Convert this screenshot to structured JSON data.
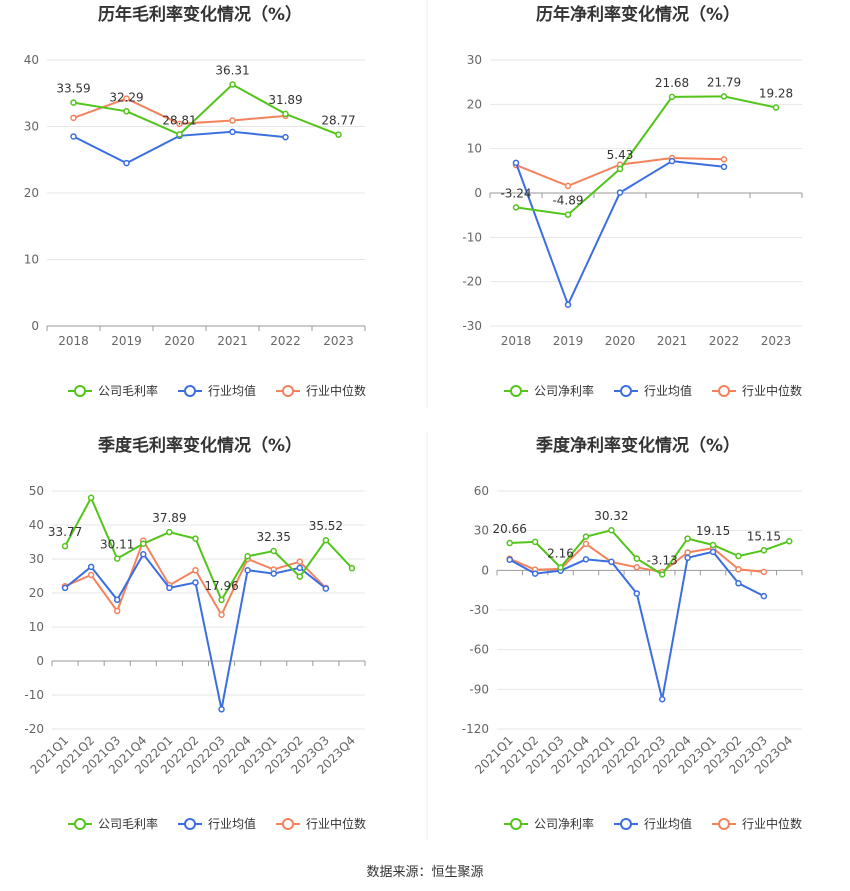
{
  "colors": {
    "company": "#52c41a",
    "industry_avg": "#3b6ee0",
    "industry_median": "#f4835d",
    "grid": "#e6e6e6",
    "axis_text": "#666666",
    "title": "#333333"
  },
  "source": "数据来源：恒生聚源",
  "chart_data": [
    {
      "type": "line",
      "title": "历年毛利率变化情况（%）",
      "categories": [
        "2018",
        "2019",
        "2020",
        "2021",
        "2022",
        "2023"
      ],
      "ylim": [
        0,
        40
      ],
      "yticks": [
        0,
        10,
        20,
        30,
        40
      ],
      "grid": true,
      "legend_position": "bottom",
      "series": [
        {
          "name": "公司毛利率",
          "color": "#52c41a",
          "values": [
            33.59,
            32.29,
            28.81,
            36.31,
            31.89,
            28.77
          ],
          "labeled": true
        },
        {
          "name": "行业均值",
          "color": "#3b6ee0",
          "values": [
            28.5,
            24.5,
            28.6,
            29.2,
            28.4,
            null
          ],
          "labeled": false
        },
        {
          "name": "行业中位数",
          "color": "#f4835d",
          "values": [
            31.3,
            34.2,
            30.4,
            30.9,
            31.6,
            null
          ],
          "labeled": false
        }
      ]
    },
    {
      "type": "line",
      "title": "历年净利率变化情况（%）",
      "categories": [
        "2018",
        "2019",
        "2020",
        "2021",
        "2022",
        "2023"
      ],
      "ylim": [
        -30,
        30
      ],
      "yticks": [
        -30,
        -20,
        -10,
        0,
        10,
        20,
        30
      ],
      "grid": true,
      "legend_position": "bottom",
      "series": [
        {
          "name": "公司净利率",
          "color": "#52c41a",
          "values": [
            -3.24,
            -4.89,
            5.43,
            21.68,
            21.79,
            19.28
          ],
          "labeled": true
        },
        {
          "name": "行业均值",
          "color": "#3b6ee0",
          "values": [
            6.8,
            -25.2,
            0.1,
            7.2,
            5.9,
            null
          ],
          "labeled": false
        },
        {
          "name": "行业中位数",
          "color": "#f4835d",
          "values": [
            6.3,
            1.6,
            6.4,
            7.9,
            7.6,
            null
          ],
          "labeled": false
        }
      ]
    },
    {
      "type": "line",
      "title": "季度毛利率变化情况（%）",
      "categories": [
        "2021Q1",
        "2021Q2",
        "2021Q3",
        "2021Q4",
        "2022Q1",
        "2022Q2",
        "2022Q3",
        "2022Q4",
        "2023Q1",
        "2023Q2",
        "2023Q3",
        "2023Q4"
      ],
      "ylim": [
        -20,
        50
      ],
      "yticks": [
        -20,
        -10,
        0,
        10,
        20,
        30,
        40,
        50
      ],
      "grid": true,
      "legend_position": "bottom",
      "series": [
        {
          "name": "公司毛利率",
          "color": "#52c41a",
          "values": [
            33.77,
            48.0,
            30.11,
            34.5,
            37.89,
            36.0,
            17.96,
            30.8,
            32.35,
            24.8,
            35.52,
            27.3
          ],
          "labeled_points": [
            0,
            2,
            4,
            6,
            8,
            10
          ]
        },
        {
          "name": "行业均值",
          "color": "#3b6ee0",
          "values": [
            21.5,
            27.7,
            18.0,
            31.4,
            21.5,
            23.1,
            -14.2,
            26.7,
            25.7,
            27.4,
            21.3,
            null
          ],
          "labeled_points": []
        },
        {
          "name": "行业中位数",
          "color": "#f4835d",
          "values": [
            22.0,
            25.3,
            14.7,
            35.4,
            22.3,
            26.7,
            13.6,
            30.0,
            26.9,
            29.2,
            21.5,
            null
          ],
          "labeled_points": []
        }
      ]
    },
    {
      "type": "line",
      "title": "季度净利率变化情况（%）",
      "categories": [
        "2021Q1",
        "2021Q2",
        "2021Q3",
        "2021Q4",
        "2022Q1",
        "2022Q2",
        "2022Q3",
        "2022Q4",
        "2023Q1",
        "2023Q2",
        "2023Q3",
        "2023Q4"
      ],
      "ylim": [
        -120,
        60
      ],
      "yticks": [
        -120,
        -90,
        -60,
        -30,
        0,
        30,
        60
      ],
      "grid": true,
      "legend_position": "bottom",
      "series": [
        {
          "name": "公司净利率",
          "color": "#52c41a",
          "values": [
            20.66,
            21.5,
            2.16,
            25.5,
            30.32,
            8.9,
            -3.13,
            24.0,
            19.15,
            10.8,
            15.15,
            22.0
          ],
          "labeled_points": [
            0,
            2,
            4,
            6,
            8,
            10
          ]
        },
        {
          "name": "行业均值",
          "color": "#3b6ee0",
          "values": [
            8.0,
            -2.5,
            -0.3,
            8.3,
            6.5,
            -17.5,
            -97.5,
            9.5,
            14.0,
            -9.8,
            -19.5,
            null
          ],
          "labeled_points": []
        },
        {
          "name": "行业中位数",
          "color": "#f4835d",
          "values": [
            8.8,
            0.5,
            1.1,
            20.0,
            6.3,
            2.3,
            -1.3,
            13.5,
            16.8,
            0.8,
            -1.2,
            null
          ],
          "labeled_points": []
        }
      ]
    }
  ]
}
